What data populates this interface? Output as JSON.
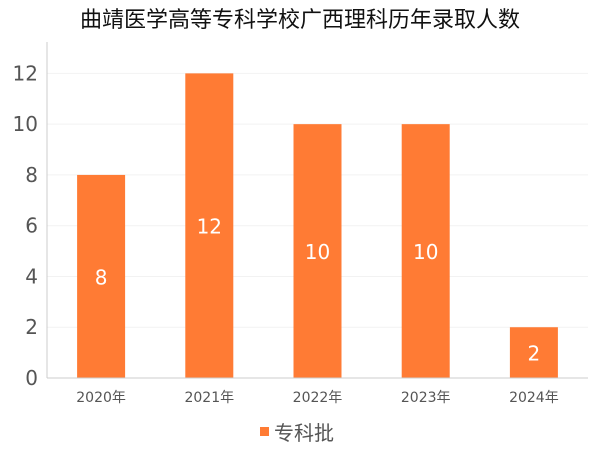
{
  "chart_data": {
    "type": "bar",
    "title": "曲靖医学高等专科学校广西理科历年录取人数",
    "categories": [
      "2020年",
      "2021年",
      "2022年",
      "2023年",
      "2024年"
    ],
    "series": [
      {
        "name": "专科批",
        "values": [
          8,
          12,
          10,
          10,
          2
        ]
      }
    ],
    "ylim": [
      0,
      13
    ],
    "yticks": [
      0,
      2,
      4,
      6,
      8,
      10,
      12
    ],
    "grid": true,
    "legend": "bottom-center",
    "colors": {
      "bar": "#ff7b34",
      "axis": "#cccccc",
      "grid": "#f2f2f2"
    }
  }
}
